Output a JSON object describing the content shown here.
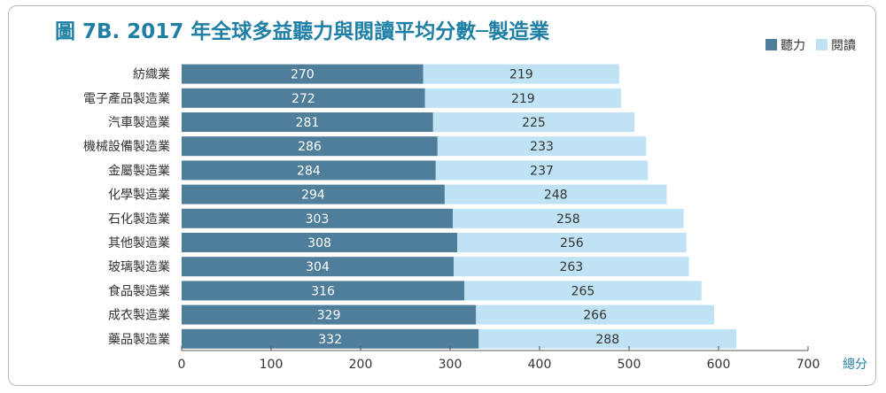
{
  "title": "圖 7B. 2017 年全球多益聽力與閱讀平均分數─製造業",
  "colors": {
    "listening": "#4e7e9a",
    "reading": "#bfe3f5",
    "title": "#1f7fa4",
    "axis": "#555555"
  },
  "chart_data": {
    "type": "bar",
    "orientation": "horizontal",
    "stacked": true,
    "categories": [
      "紡織業",
      "電子產品製造業",
      "汽車製造業",
      "機械設備製造業",
      "金屬製造業",
      "化學製造業",
      "石化製造業",
      "其他製造業",
      "玻璃製造業",
      "食品製造業",
      "成衣製造業",
      "藥品製造業"
    ],
    "series": [
      {
        "name": "聽力",
        "values": [
          270,
          272,
          281,
          286,
          284,
          294,
          303,
          308,
          304,
          316,
          329,
          332
        ]
      },
      {
        "name": "閱讀",
        "values": [
          219,
          219,
          225,
          233,
          237,
          248,
          258,
          256,
          263,
          265,
          266,
          288
        ]
      }
    ],
    "xlabel": "總分",
    "xlim": [
      0,
      700
    ],
    "xticks": [
      0,
      100,
      200,
      300,
      400,
      500,
      600,
      700
    ],
    "grid": false,
    "legend": "top-right"
  }
}
